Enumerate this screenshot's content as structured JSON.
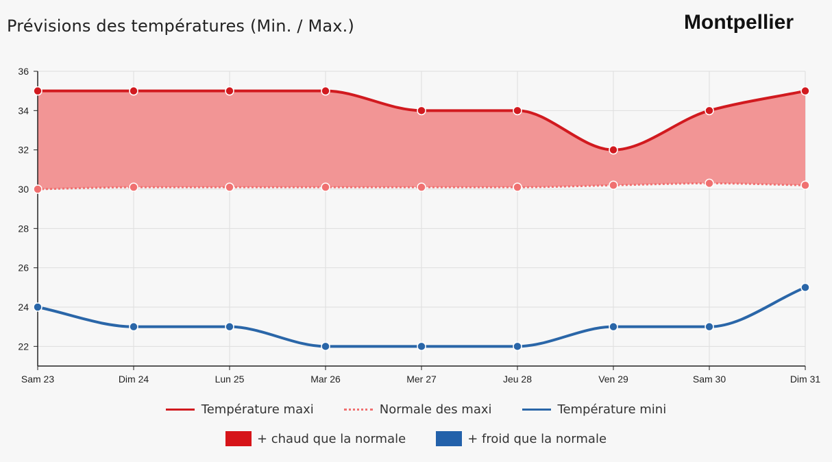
{
  "header": {
    "title": "Prévisions des températures (Min. / Max.)",
    "city": "Montpellier"
  },
  "colors": {
    "max_line": "#d11a1f",
    "normal_line": "#f07070",
    "min_line": "#2a66a8",
    "warm_area": "#f29595",
    "warm_box": "#d61419",
    "cold_box": "#2361aa"
  },
  "chart_data": {
    "type": "line",
    "categories": [
      "Sam 23",
      "Dim 24",
      "Lun 25",
      "Mar 26",
      "Mer 27",
      "Jeu 28",
      "Ven 29",
      "Sam 30",
      "Dim 31"
    ],
    "series": [
      {
        "name": "Température maxi",
        "values": [
          35,
          35,
          35,
          35,
          34,
          34,
          32,
          34,
          35
        ]
      },
      {
        "name": "Normale des maxi",
        "values": [
          30,
          30.1,
          30.1,
          30.1,
          30.1,
          30.1,
          30.2,
          30.3,
          30.2
        ]
      },
      {
        "name": "Température mini",
        "values": [
          24,
          23,
          23,
          22,
          22,
          22,
          23,
          23,
          25
        ]
      }
    ],
    "y_ticks": [
      "22",
      "24",
      "26",
      "28",
      "30",
      "32",
      "34",
      "36"
    ],
    "ylim": [
      21,
      36
    ],
    "grid": true,
    "area_fill": "between Température maxi and Normale des maxi",
    "legend": {
      "position": "bottom",
      "row1": [
        "Température maxi",
        "Normale des maxi",
        "Température mini"
      ],
      "row2": [
        "+ chaud que la normale",
        "+ froid que la normale"
      ]
    }
  }
}
